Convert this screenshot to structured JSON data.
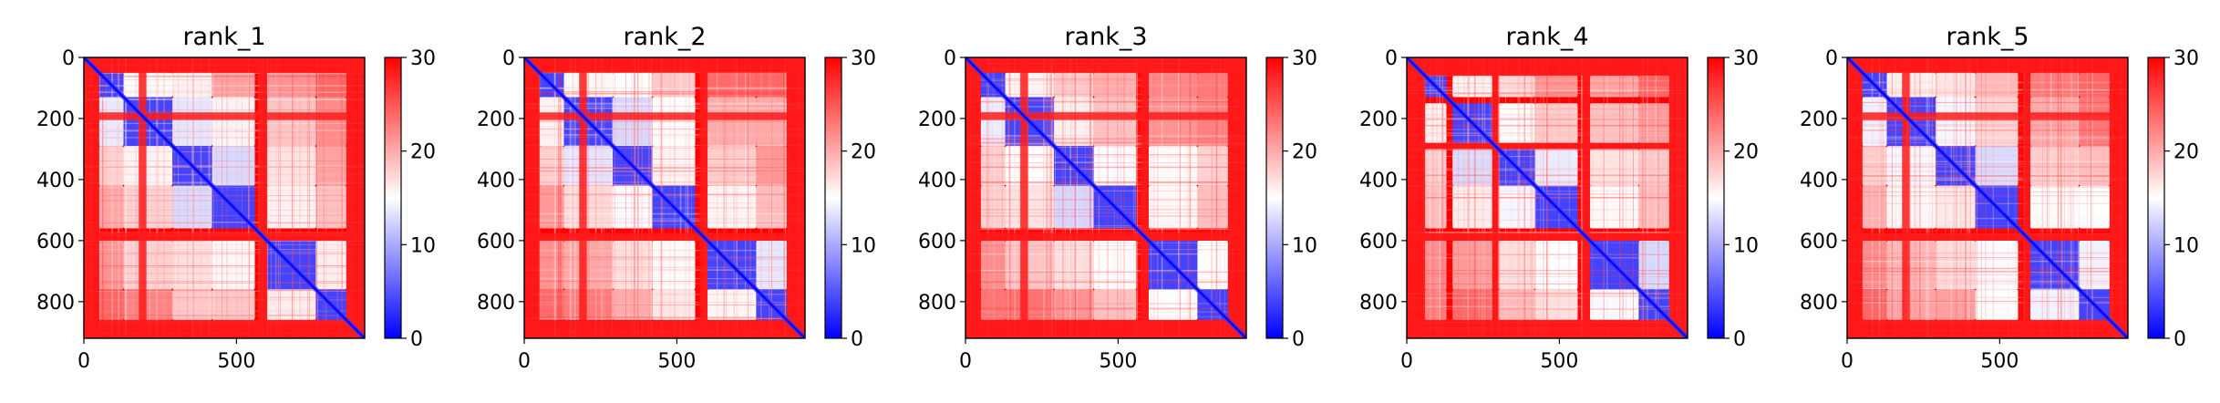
{
  "chart_data": [
    {
      "type": "heatmap",
      "title": "rank_1",
      "xlabel": "",
      "ylabel": "",
      "x_ticks": [
        "0",
        "500"
      ],
      "y_ticks": [
        "0",
        "200",
        "400",
        "600",
        "800"
      ],
      "xlim": [
        0,
        920
      ],
      "ylim": [
        920,
        0
      ],
      "matrix_size": 920,
      "colorbar": {
        "ticks": [
          "0",
          "10",
          "20",
          "30"
        ],
        "range": [
          0,
          30
        ],
        "colors": [
          "#0000ff",
          "#ffffff",
          "#ff0000"
        ]
      },
      "low_value_blocks": [
        [
          50,
          130
        ],
        [
          130,
          290
        ],
        [
          290,
          420
        ],
        [
          420,
          560
        ],
        [
          600,
          760
        ],
        [
          760,
          860
        ]
      ],
      "high_value_bands": [
        [
          0,
          50
        ],
        [
          180,
          205
        ],
        [
          575,
          600
        ],
        [
          860,
          920
        ]
      ],
      "diagonal_value": 0
    },
    {
      "type": "heatmap",
      "title": "rank_2",
      "xlabel": "",
      "ylabel": "",
      "x_ticks": [
        "0",
        "500"
      ],
      "y_ticks": [
        "0",
        "200",
        "400",
        "600",
        "800"
      ],
      "xlim": [
        0,
        920
      ],
      "ylim": [
        920,
        0
      ],
      "matrix_size": 920,
      "colorbar": {
        "ticks": [
          "0",
          "10",
          "20",
          "30"
        ],
        "range": [
          0,
          30
        ],
        "colors": [
          "#0000ff",
          "#ffffff",
          "#ff0000"
        ]
      },
      "low_value_blocks": [
        [
          50,
          130
        ],
        [
          130,
          290
        ],
        [
          290,
          420
        ],
        [
          420,
          560
        ],
        [
          600,
          760
        ],
        [
          760,
          860
        ]
      ],
      "high_value_bands": [
        [
          0,
          50
        ],
        [
          180,
          205
        ],
        [
          575,
          600
        ],
        [
          860,
          920
        ]
      ],
      "diagonal_value": 0
    },
    {
      "type": "heatmap",
      "title": "rank_3",
      "xlabel": "",
      "ylabel": "",
      "x_ticks": [
        "0",
        "500"
      ],
      "y_ticks": [
        "0",
        "200",
        "400",
        "600",
        "800"
      ],
      "xlim": [
        0,
        920
      ],
      "ylim": [
        920,
        0
      ],
      "matrix_size": 920,
      "colorbar": {
        "ticks": [
          "0",
          "10",
          "20",
          "30"
        ],
        "range": [
          0,
          30
        ],
        "colors": [
          "#0000ff",
          "#ffffff",
          "#ff0000"
        ]
      },
      "low_value_blocks": [
        [
          50,
          130
        ],
        [
          130,
          290
        ],
        [
          290,
          420
        ],
        [
          420,
          560
        ],
        [
          600,
          760
        ],
        [
          760,
          860
        ]
      ],
      "high_value_bands": [
        [
          0,
          50
        ],
        [
          180,
          205
        ],
        [
          575,
          600
        ],
        [
          860,
          920
        ]
      ],
      "diagonal_value": 0
    },
    {
      "type": "heatmap",
      "title": "rank_4",
      "xlabel": "",
      "ylabel": "",
      "x_ticks": [
        "0",
        "500"
      ],
      "y_ticks": [
        "0",
        "200",
        "400",
        "600",
        "800"
      ],
      "xlim": [
        0,
        920
      ],
      "ylim": [
        920,
        0
      ],
      "matrix_size": 920,
      "colorbar": {
        "ticks": [
          "0",
          "10",
          "20",
          "30"
        ],
        "range": [
          0,
          30
        ],
        "colors": [
          "#0000ff",
          "#ffffff",
          "#ff0000"
        ]
      },
      "low_value_blocks": [
        [
          60,
          130
        ],
        [
          150,
          280
        ],
        [
          300,
          420
        ],
        [
          420,
          560
        ],
        [
          600,
          760
        ],
        [
          760,
          860
        ]
      ],
      "high_value_bands": [
        [
          0,
          60
        ],
        [
          280,
          300
        ],
        [
          575,
          600
        ],
        [
          860,
          920
        ]
      ],
      "diagonal_value": 0
    },
    {
      "type": "heatmap",
      "title": "rank_5",
      "xlabel": "",
      "ylabel": "",
      "x_ticks": [
        "0",
        "500"
      ],
      "y_ticks": [
        "0",
        "200",
        "400",
        "600",
        "800"
      ],
      "xlim": [
        0,
        920
      ],
      "ylim": [
        920,
        0
      ],
      "matrix_size": 920,
      "colorbar": {
        "ticks": [
          "0",
          "10",
          "20",
          "30"
        ],
        "range": [
          0,
          30
        ],
        "colors": [
          "#0000ff",
          "#ffffff",
          "#ff0000"
        ]
      },
      "low_value_blocks": [
        [
          50,
          130
        ],
        [
          130,
          290
        ],
        [
          290,
          420
        ],
        [
          420,
          560
        ],
        [
          600,
          760
        ],
        [
          760,
          860
        ]
      ],
      "high_value_bands": [
        [
          0,
          50
        ],
        [
          180,
          205
        ],
        [
          575,
          600
        ],
        [
          860,
          920
        ]
      ],
      "diagonal_value": 0
    }
  ]
}
